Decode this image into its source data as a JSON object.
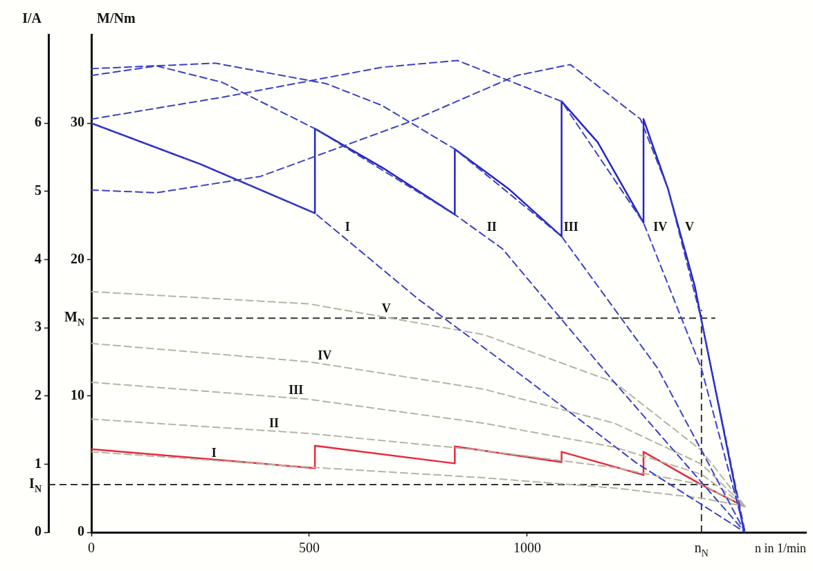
{
  "chart_data": {
    "type": "line",
    "xlabel": "n in 1/min",
    "ylabel": "I/A",
    "y2label": "M/Nm",
    "xlim": [
      0,
      1640
    ],
    "xticks": [
      0,
      500,
      1000
    ],
    "ylim": [
      0,
      7.3
    ],
    "yticks": [
      0,
      1,
      2,
      3,
      4,
      5,
      6
    ],
    "y2lim": [
      0,
      36.5
    ],
    "y2ticks": [
      0,
      10,
      20,
      30
    ],
    "grid": false,
    "legend": false,
    "series": [
      {
        "name": "I",
        "axis": "y2",
        "color": "#3a3fc8",
        "line_style": "dashed",
        "x": [
          0,
          250,
          513,
          750,
          1000,
          1250,
          1500
        ],
        "values": [
          30,
          27,
          23.4,
          17.1,
          11.2,
          5.1,
          0
        ]
      },
      {
        "name": "II",
        "axis": "y2",
        "color": "#3a3fc8",
        "line_style": "dashed",
        "x": [
          0,
          150,
          300,
          513,
          834,
          943,
          1200,
          1500
        ],
        "values": [
          33.5,
          34.2,
          33,
          29.6,
          23.3,
          20.8,
          11,
          0
        ]
      },
      {
        "name": "III",
        "axis": "y2",
        "color": "#3a3fc8",
        "line_style": "dashed",
        "x": [
          0,
          285,
          539,
          667,
          834,
          1079,
          1300,
          1500
        ],
        "values": [
          34,
          34.4,
          32.9,
          31.3,
          28.1,
          21.7,
          12,
          0
        ]
      },
      {
        "name": "IV",
        "axis": "y2",
        "color": "#3a3fc8",
        "line_style": "dashed",
        "x": [
          0,
          300,
          667,
          840,
          1079,
          1267,
          1400,
          1500
        ],
        "values": [
          30.3,
          31.9,
          34.1,
          34.6,
          31.6,
          22.7,
          12,
          0
        ]
      },
      {
        "name": "V",
        "axis": "y2",
        "color": "#3a3fc8",
        "line_style": "dashed",
        "x": [
          0,
          150,
          388,
          730,
          976,
          1099,
          1260,
          1323,
          1399,
          1500
        ],
        "values": [
          25.1,
          24.9,
          26.1,
          30.1,
          33.5,
          34.3,
          30.3,
          25.2,
          15.7,
          0
        ]
      },
      {
        "name": "I",
        "color": "#b4b4a4",
        "line_style": "dashed",
        "x": [
          0,
          513,
          900,
          1200,
          1400,
          1500
        ],
        "values": [
          1.18,
          0.95,
          0.8,
          0.65,
          0.5,
          0.38
        ]
      },
      {
        "name": "II",
        "color": "#b4b4a4",
        "line_style": "dashed",
        "x": [
          0,
          500,
          900,
          1200,
          1400,
          1500
        ],
        "values": [
          1.66,
          1.45,
          1.2,
          0.95,
          0.7,
          0.38
        ]
      },
      {
        "name": "III",
        "color": "#b4b4a4",
        "line_style": "dashed",
        "x": [
          0,
          500,
          900,
          1200,
          1400,
          1500
        ],
        "values": [
          2.2,
          1.95,
          1.6,
          1.25,
          0.85,
          0.38
        ]
      },
      {
        "name": "IV",
        "color": "#b4b4a4",
        "line_style": "dashed",
        "x": [
          0,
          500,
          900,
          1200,
          1400,
          1500
        ],
        "values": [
          2.77,
          2.5,
          2.1,
          1.6,
          1,
          0.38
        ]
      },
      {
        "name": "V",
        "color": "#b4b4a4",
        "line_style": "dashed",
        "x": [
          0,
          500,
          900,
          1200,
          1400,
          1500
        ],
        "values": [
          3.53,
          3.35,
          2.9,
          2.2,
          1.2,
          0.38
        ]
      },
      {
        "color": "#e8283c",
        "line_style": "solid",
        "x": [
          0,
          513,
          513,
          834,
          834,
          1079,
          1079,
          1267,
          1267,
          1399,
          1498
        ],
        "values": [
          1.22,
          0.94,
          1.27,
          1.01,
          1.26,
          1.03,
          1.18,
          0.84,
          1.18,
          0.7,
          0.38
        ]
      },
      {
        "axis": "y2",
        "color": "#2424c4",
        "line_style": "solid",
        "x": [
          0,
          250,
          513,
          513,
          670,
          834,
          834,
          957,
          1079,
          1079,
          1162,
          1267,
          1267,
          1323,
          1385,
          1399,
          1498
        ],
        "values": [
          30,
          27,
          23.4,
          29.6,
          26.7,
          23.3,
          28.1,
          25.2,
          21.7,
          31.6,
          28.6,
          22.7,
          30.3,
          25.2,
          18,
          15.7,
          0
        ]
      }
    ],
    "ref_lines": [
      {
        "axis": "y2",
        "value": 15.7,
        "label": "M$_{N}$",
        "color": "#333333",
        "line_style": "dashed"
      },
      {
        "axis": "y",
        "value": 0.7,
        "label": "I$_{N}$",
        "color": "#333333",
        "line_style": "dashed"
      },
      {
        "axis": "x",
        "value": 1400,
        "label": "n$_{N}$",
        "color": "#333333",
        "line_style": "dashed"
      }
    ]
  }
}
